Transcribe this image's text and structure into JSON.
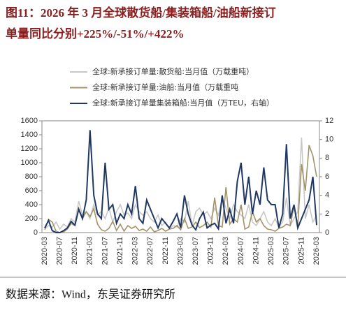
{
  "chart_data": {
    "type": "line",
    "title": "图11：2026 年 3 月全球散货船/集装箱船/油船新接订单量同比分别+225%/-51%/+422%",
    "source": "数据来源：Wind，东吴证券研究所",
    "categories": [
      "2020-03",
      null,
      null,
      null,
      "2020-07",
      null,
      null,
      null,
      "2020-11",
      null,
      null,
      null,
      "2021-03",
      null,
      null,
      null,
      "2021-07",
      null,
      null,
      null,
      "2021-11",
      null,
      null,
      null,
      "2022-03",
      null,
      null,
      null,
      "2022-07",
      null,
      null,
      null,
      "2022-11",
      null,
      null,
      null,
      "2023-03",
      null,
      null,
      null,
      "2023-07",
      null,
      null,
      null,
      "2023-11",
      null,
      null,
      null,
      "2024-03",
      null,
      null,
      null,
      "2024-07",
      null,
      null,
      null,
      "2024-11",
      null,
      null,
      null,
      "2025-03",
      null,
      null,
      null,
      "2025-07",
      null,
      null,
      null,
      "2025-11",
      null,
      null,
      null,
      "2026-03"
    ],
    "ylim": [
      0,
      1600
    ],
    "yticks": [
      0,
      200,
      400,
      600,
      800,
      1000,
      1200,
      1400,
      1600
    ],
    "y2lim": [
      0,
      12
    ],
    "y2ticks": [
      0,
      2,
      4,
      6,
      8,
      10,
      12
    ],
    "series": [
      {
        "name": "全球:新承接订单量:散货船:当月值（万载重吨）",
        "color": "#c8c8c8",
        "values": [
          50,
          100,
          80,
          150,
          50,
          120,
          80,
          200,
          150,
          450,
          250,
          300,
          200,
          400,
          250,
          300,
          200,
          350,
          150,
          300,
          400,
          250,
          280,
          200,
          400,
          300,
          250,
          300,
          200,
          150,
          250,
          100,
          150,
          50,
          100,
          80,
          200,
          150,
          450,
          100,
          300,
          350,
          250,
          300,
          200,
          350,
          250,
          500,
          350,
          200,
          400,
          300,
          250,
          200,
          400,
          150,
          100,
          200,
          300,
          150,
          100,
          200,
          80,
          150,
          500,
          100,
          200,
          300,
          1360,
          200,
          400,
          150,
          250
        ]
      },
      {
        "name": "全球:新承接订单量:油船:当月值（万载重吨",
        "color": "#a39369",
        "values": [
          40,
          190,
          150,
          20,
          0,
          10,
          50,
          130,
          100,
          350,
          200,
          300,
          230,
          340,
          120,
          40,
          20,
          60,
          160,
          30,
          120,
          20,
          100,
          60,
          90,
          30,
          50,
          20,
          80,
          10,
          30,
          60,
          20,
          50,
          60,
          100,
          40,
          200,
          60,
          80,
          150,
          70,
          100,
          150,
          80,
          500,
          100,
          80,
          650,
          120,
          200,
          150,
          400,
          50,
          80,
          300,
          150,
          200,
          100,
          50,
          40,
          20,
          60,
          80,
          120,
          100,
          380,
          100,
          980,
          600,
          1250,
          1100,
          800
        ]
      },
      {
        "name": "全球:新承接订单量集装箱船:当月值（万TEU，右轴）",
        "color": "#1f3864",
        "axis": "y2",
        "values": [
          0.5,
          1.3,
          0.2,
          0,
          0,
          0.2,
          0.5,
          1.2,
          0.8,
          2.5,
          1.5,
          3.5,
          11,
          4,
          2,
          1.5,
          7.5,
          2.5,
          3,
          1,
          2,
          1.5,
          3,
          2,
          5,
          1.5,
          1,
          3.5,
          2.5,
          1.5,
          0.5,
          1.5,
          1,
          0.5,
          1.2,
          2,
          0.5,
          4,
          2,
          0.8,
          0.3,
          1.5,
          2.2,
          0.5,
          0.8,
          1,
          0.4,
          4,
          1,
          2.5,
          1,
          5.5,
          7.5,
          3,
          6,
          2,
          4.5,
          3,
          7,
          3.5,
          3,
          3,
          0.5,
          2,
          9.5,
          1.5,
          3,
          0.5,
          1.5,
          2.5,
          3.5,
          6,
          0.8
        ]
      }
    ]
  }
}
